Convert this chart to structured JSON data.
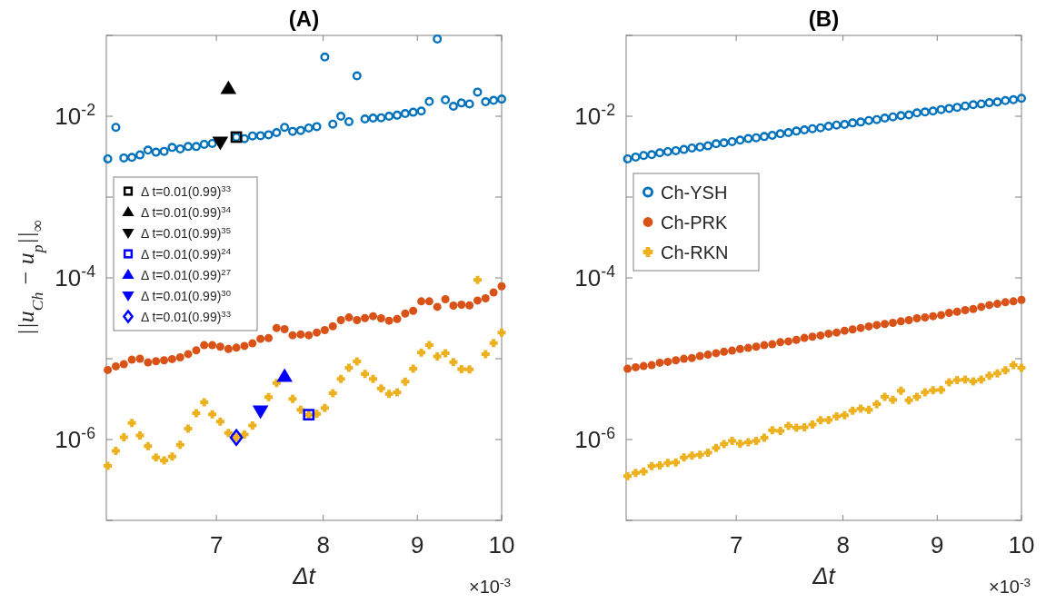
{
  "chart_data": [
    {
      "type": "scatter",
      "title": "(A)",
      "xlabel": "Δt",
      "ylabel": "||u$_{Ch}$ − u$_{p}$||$_{∞}$",
      "annotations": [
        "×10$^{-3}$"
      ],
      "log": "xy",
      "grid": false,
      "legend": "top left",
      "xlim": [
        6.1,
        10
      ],
      "xticks": [
        7,
        8,
        9,
        10
      ],
      "ylim": [
        1e-07,
        0.1
      ],
      "yticks": [
        {
          "value": 1e-07,
          "label": null
        },
        {
          "value": 1e-06,
          "label": "10$^{-6}$"
        },
        {
          "value": 1e-05,
          "label": null
        },
        {
          "value": 0.0001,
          "label": "10$^{-4}$"
        },
        {
          "value": 0.001,
          "label": null
        },
        {
          "value": 0.01,
          "label": "10$^{-2}$"
        },
        {
          "value": 0.1,
          "label": null
        }
      ],
      "x": [
        6.111,
        6.173,
        6.235,
        6.298,
        6.362,
        6.426,
        6.491,
        6.557,
        6.623,
        6.69,
        6.757,
        6.826,
        6.894,
        6.964,
        7.034,
        7.106,
        7.177,
        7.25,
        7.323,
        7.397,
        7.472,
        7.547,
        7.623,
        7.7,
        7.778,
        7.857,
        7.936,
        8.016,
        8.097,
        8.179,
        8.262,
        8.345,
        8.429,
        8.515,
        8.601,
        8.687,
        8.775,
        8.864,
        8.953,
        9.044,
        9.135,
        9.227,
        9.321,
        9.415,
        9.51,
        9.606,
        9.703,
        9.801,
        9.9,
        10
      ],
      "series": [
        {
          "color": "#0072bd",
          "marker": "circle",
          "values": [
            0.00297,
            0.0073,
            0.00305,
            0.0031,
            0.00332,
            0.00381,
            0.00359,
            0.00368,
            0.00411,
            0.00395,
            0.00422,
            0.00422,
            0.00449,
            0.00461,
            null,
            null,
            0.00552,
            0.00528,
            0.00571,
            0.00575,
            0.0059,
            0.00628,
            0.0073,
            0.0065,
            0.00667,
            0.00715,
            0.00745,
            0.054,
            0.00799,
            0.01,
            0.00857,
            0.0316,
            0.00925,
            0.0095,
            0.00957,
            0.01,
            0.0103,
            0.0108,
            0.0112,
            0.0116,
            0.0152,
            0.0904,
            0.0159,
            0.0133,
            0.0146,
            0.0142,
            0.0199,
            0.0151,
            0.0157,
            0.0163
          ]
        },
        {
          "color": "#d95319",
          "marker": "point",
          "values": [
            7.26e-06,
            8.05e-06,
            8.55e-06,
            9.73e-06,
            1e-05,
            8.99e-06,
            9.31e-06,
            9.55e-06,
            9.9e-06,
            1.04e-05,
            1.14e-05,
            1.27e-05,
            1.47e-05,
            1.47e-05,
            1.41e-05,
            1.32e-05,
            1.37e-05,
            1.44e-05,
            1.55e-05,
            1.76e-05,
            1.8e-05,
            2.4e-05,
            2.32e-05,
            1.95e-05,
            2e-05,
            1.95e-05,
            2.11e-05,
            2.26e-05,
            2.52e-05,
            3e-05,
            3.24e-05,
            3e-05,
            3.18e-05,
            3.36e-05,
            3.16e-05,
            2.95e-05,
            3.1e-05,
            3.62e-05,
            3.92e-05,
            5.12e-05,
            5.12e-05,
            4.38e-05,
            5.44e-05,
            4.54e-05,
            4.66e-05,
            4.57e-05,
            5.25e-05,
            5.58e-05,
            6.62e-05,
            7.87e-05
          ]
        },
        {
          "color": "#edb120",
          "marker": "cross",
          "values": [
            4.71e-07,
            7.23e-07,
            1.07e-06,
            1.6e-06,
            1.12e-06,
            8.3e-07,
            5.98e-07,
            5.53e-07,
            6.14e-07,
            8.59e-07,
            1.36e-06,
            2.12e-06,
            2.89e-06,
            2.05e-06,
            1.67e-06,
            1.21e-06,
            1.06e-06,
            1.15e-06,
            1.49e-06,
            null,
            3.35e-06,
            5.01e-06,
            null,
            3.18e-06,
            2.33e-06,
            2.03e-06,
            2.08e-06,
            2.45e-06,
            3.74e-06,
            5.61e-06,
            7.7e-06,
            9.23e-06,
            6.49e-06,
            5.61e-06,
            4.29e-06,
            3.67e-06,
            3.84e-06,
            5.22e-06,
            7.5e-06,
            1.19e-05,
            1.47e-05,
            1.07e-05,
            1.17e-05,
            9.06e-06,
            7.45e-06,
            7.38e-06,
            9.42e-05,
            1.14e-05,
            1.56e-05,
            2.11e-05
          ]
        },
        {
          "name": "Δ  t=0.01(0.99)$^{33}$",
          "color": "#000000",
          "marker": "square",
          "x": [
            7.177
          ],
          "values": [
            0.00552
          ]
        },
        {
          "name": "Δ  t=0.01(0.99)$^{34}$",
          "color": "#000000",
          "marker": "triangle",
          "x": [
            7.106
          ],
          "values": [
            0.022
          ]
        },
        {
          "name": "Δ  t=0.01(0.99)$^{35}$",
          "color": "#000000",
          "marker": "triangle-down",
          "x": [
            7.034
          ],
          "values": [
            0.00477
          ]
        },
        {
          "name": "Δ  t=0.01(0.99)$^{24}$",
          "color": "#0000ff",
          "marker": "square",
          "x": [
            7.857
          ],
          "values": [
            2.03e-06
          ]
        },
        {
          "name": "Δ  t=0.01(0.99)$^{27}$",
          "color": "#0000ff",
          "marker": "triangle",
          "x": [
            7.623
          ],
          "values": [
            6.07e-06
          ]
        },
        {
          "name": "Δ  t=0.01(0.99)$^{30}$",
          "color": "#0000ff",
          "marker": "triangle-down",
          "x": [
            7.397
          ],
          "values": [
            2.25e-06
          ]
        },
        {
          "name": "Δ  t=0.01(0.99)$^{33}$",
          "color": "#0000ff",
          "marker": "diamond",
          "x": [
            7.177
          ],
          "values": [
            1.06e-06
          ]
        }
      ]
    },
    {
      "type": "scatter",
      "title": "(B)",
      "xlabel": "Δt",
      "annotations": [
        "×10$^{-3}$"
      ],
      "log": "xy",
      "grid": false,
      "legend": "top left",
      "xlim": [
        6.1,
        10
      ],
      "xticks": [
        7,
        8,
        9,
        10
      ],
      "ylim": [
        1e-07,
        0.1
      ],
      "yticks": [
        {
          "value": 1e-07,
          "label": null
        },
        {
          "value": 1e-06,
          "label": "10$^{-6}$"
        },
        {
          "value": 1e-05,
          "label": null
        },
        {
          "value": 0.0001,
          "label": "10$^{-4}$"
        },
        {
          "value": 0.001,
          "label": null
        },
        {
          "value": 0.01,
          "label": "10$^{-2}$"
        },
        {
          "value": 0.1,
          "label": null
        }
      ],
      "x": [
        6.111,
        6.173,
        6.235,
        6.298,
        6.362,
        6.426,
        6.491,
        6.557,
        6.623,
        6.69,
        6.757,
        6.826,
        6.894,
        6.964,
        7.034,
        7.106,
        7.177,
        7.25,
        7.323,
        7.397,
        7.472,
        7.547,
        7.623,
        7.7,
        7.778,
        7.857,
        7.936,
        8.016,
        8.097,
        8.179,
        8.262,
        8.345,
        8.429,
        8.515,
        8.601,
        8.687,
        8.775,
        8.864,
        8.953,
        9.044,
        9.135,
        9.227,
        9.321,
        9.415,
        9.51,
        9.606,
        9.703,
        9.801,
        9.9,
        10
      ],
      "series": [
        {
          "name": "Ch-YSH",
          "color": "#0072bd",
          "marker": "circle",
          "values": [
            0.00297,
            0.00313,
            0.00327,
            0.00335,
            0.00353,
            0.00365,
            0.00375,
            0.00388,
            0.00405,
            0.00416,
            0.0043,
            0.00457,
            0.00469,
            0.00485,
            0.00506,
            0.00529,
            0.00542,
            0.00561,
            0.00581,
            0.00607,
            0.00628,
            0.00655,
            0.00678,
            0.00702,
            0.0072,
            0.00752,
            0.00778,
            0.00792,
            0.00827,
            0.00848,
            0.00886,
            0.00909,
            0.00949,
            0.00982,
            0.0102,
            0.0104,
            0.011,
            0.0113,
            0.0116,
            0.0121,
            0.0125,
            0.0129,
            0.0134,
            0.0139,
            0.0142,
            0.0147,
            0.015,
            0.0156,
            0.016,
            0.0167
          ]
        },
        {
          "name": "Ch-PRK",
          "color": "#d95319",
          "marker": "point",
          "values": [
            7.51e-06,
            7.84e-06,
            8.11e-06,
            8.32e-06,
            8.92e-06,
            9.16e-06,
            9.55e-06,
            9.98e-06,
            1.02e-05,
            1.08e-05,
            1.12e-05,
            1.17e-05,
            1.22e-05,
            1.26e-05,
            1.32e-05,
            1.36e-05,
            1.41e-05,
            1.47e-05,
            1.51e-05,
            1.6e-05,
            1.64e-05,
            1.71e-05,
            1.81e-05,
            1.87e-05,
            1.94e-05,
            2.04e-05,
            2.11e-05,
            2.22e-05,
            2.3e-05,
            2.4e-05,
            2.51e-05,
            2.61e-05,
            2.69e-05,
            2.78e-05,
            2.9e-05,
            3e-05,
            3.16e-05,
            3.24e-05,
            3.36e-05,
            3.47e-05,
            3.69e-05,
            3.82e-05,
            3.99e-05,
            4.12e-05,
            4.38e-05,
            4.61e-05,
            4.77e-05,
            4.99e-05,
            5.12e-05,
            5.34e-05
          ]
        },
        {
          "name": "Ch-RKN",
          "color": "#edb120",
          "marker": "cross",
          "values": [
            3.54e-07,
            3.86e-07,
            4.03e-07,
            4.7e-07,
            4.78e-07,
            5.13e-07,
            5.21e-07,
            5.98e-07,
            6.3e-07,
            6.47e-07,
            6.87e-07,
            7.89e-07,
            8.81e-07,
            9.6e-07,
            8.89e-07,
            9.27e-07,
            9.6e-07,
            1.05e-06,
            1.3e-06,
            1.28e-06,
            1.47e-06,
            1.4e-06,
            1.42e-06,
            1.53e-06,
            1.73e-06,
            1.74e-06,
            1.93e-06,
            2e-06,
            2.27e-06,
            2.41e-06,
            2.33e-06,
            2.74e-06,
            3.37e-06,
            3.1e-06,
            4.01e-06,
            3.07e-06,
            3.37e-06,
            3.84e-06,
            4.07e-06,
            4.11e-06,
            5.09e-06,
            5.46e-06,
            5.51e-06,
            5.24e-06,
            5.51e-06,
            6.16e-06,
            6.55e-06,
            7.19e-06,
            8.32e-06,
            7.7e-06
          ]
        }
      ]
    }
  ]
}
